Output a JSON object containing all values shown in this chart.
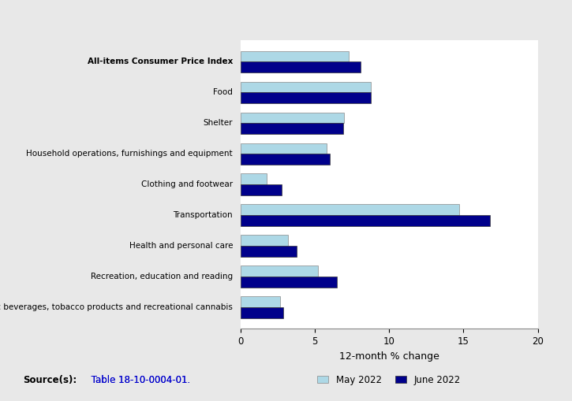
{
  "categories": [
    "All-items Consumer Price Index",
    "Food",
    "Shelter",
    "Household operations, furnishings and equipment",
    "Clothing and footwear",
    "Transportation",
    "Health and personal care",
    "Recreation, education and reading",
    "Alcoholic beverages, tobacco products and recreational cannabis"
  ],
  "may_2022": [
    7.3,
    8.8,
    7.0,
    5.8,
    1.8,
    14.7,
    3.2,
    5.2,
    2.7
  ],
  "june_2022": [
    8.1,
    8.8,
    6.9,
    6.0,
    2.8,
    16.8,
    3.8,
    6.5,
    2.9
  ],
  "may_color": "#add8e6",
  "june_color": "#00008b",
  "xlabel": "12-month % change",
  "xlim": [
    0,
    20
  ],
  "xticks": [
    0,
    5,
    10,
    15,
    20
  ],
  "legend_may": "May 2022",
  "legend_june": "June 2022",
  "background_color": "#e8e8e8",
  "plot_background_color": "#ffffff",
  "source_text": "Source(s):",
  "source_link": "Table 18-10-0004-01."
}
